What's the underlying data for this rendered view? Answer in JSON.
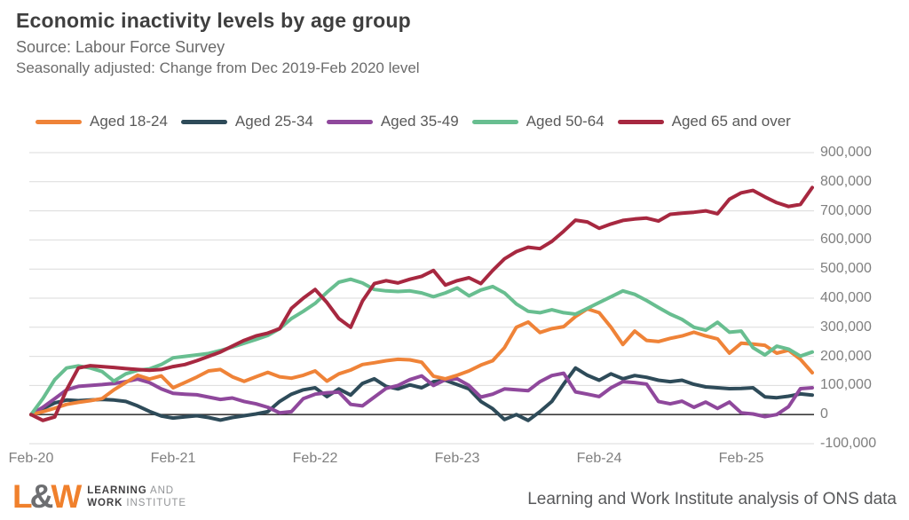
{
  "header": {
    "title": "Economic inactivity levels by age group",
    "subtitle": "Source: Labour Force Survey",
    "note": "Seasonally adjusted: Change from Dec 2019-Feb 2020 level"
  },
  "footer": {
    "logo_mark_l": "L",
    "logo_mark_amp": "&",
    "logo_mark_w": "W",
    "logo_line1_bold": "LEARNING",
    "logo_line1_rest": " AND",
    "logo_line2_bold": "WORK",
    "logo_line2_rest": " INSTITUTE",
    "credit": "Learning and Work Institute analysis of ONS data"
  },
  "colors": {
    "orange": "#EF8338",
    "teal": "#2E4B59",
    "purple": "#8F489C",
    "green": "#68BE90",
    "red": "#A72840",
    "grid": "#DBDBDB",
    "zero_line": "#3B3B3B",
    "logo_orange": "#F0802C",
    "logo_amp_gray": "#6D6E71"
  },
  "chart_data": {
    "type": "line",
    "title": "Economic inactivity levels by age group",
    "subtitle": "Seasonally adjusted: Change from Dec 2019-Feb 2020 level",
    "unit_note": "values are thousands of people (change vs Dec 2019-Feb 2020 level)",
    "grid": true,
    "legend_position": "top",
    "y_axis": {
      "max_thousands": 900,
      "min_thousands": -100,
      "step_thousands": 100,
      "tick_labels": [
        "900,000",
        "800,000",
        "700,000",
        "600,000",
        "500,000",
        "400,000",
        "300,000",
        "200,000",
        "100,000",
        "0",
        "-100,000"
      ]
    },
    "x_axis": {
      "tick_labels": [
        "Feb-20",
        "Feb-21",
        "Feb-22",
        "Feb-23",
        "Feb-24",
        "Feb-25"
      ],
      "tick_month_indices": [
        0,
        12,
        24,
        36,
        48,
        60
      ]
    },
    "months": [
      "Feb-20",
      "Mar-20",
      "Apr-20",
      "May-20",
      "Jun-20",
      "Jul-20",
      "Aug-20",
      "Sep-20",
      "Oct-20",
      "Nov-20",
      "Dec-20",
      "Jan-21",
      "Feb-21",
      "Mar-21",
      "Apr-21",
      "May-21",
      "Jun-21",
      "Jul-21",
      "Aug-21",
      "Sep-21",
      "Oct-21",
      "Nov-21",
      "Dec-21",
      "Jan-22",
      "Feb-22",
      "Mar-22",
      "Apr-22",
      "May-22",
      "Jun-22",
      "Jul-22",
      "Aug-22",
      "Sep-22",
      "Oct-22",
      "Nov-22",
      "Dec-22",
      "Jan-23",
      "Feb-23",
      "Mar-23",
      "Apr-23",
      "May-23",
      "Jun-23",
      "Jul-23",
      "Aug-23",
      "Sep-23",
      "Oct-23",
      "Nov-23",
      "Dec-23",
      "Jan-24",
      "Feb-24",
      "Mar-24",
      "Apr-24",
      "May-24",
      "Jun-24",
      "Jul-24",
      "Aug-24",
      "Sep-24",
      "Oct-24",
      "Nov-24",
      "Dec-24",
      "Jan-25",
      "Feb-25",
      "Mar-25",
      "Apr-25",
      "May-25",
      "Jun-25",
      "Jul-25",
      "Aug-25"
    ],
    "series": [
      {
        "name": "Aged 18-24",
        "color": "#EF8338",
        "z": 3,
        "values_thousands": [
          0,
          10,
          22,
          35,
          42,
          48,
          55,
          85,
          110,
          135,
          122,
          133,
          92,
          110,
          129,
          150,
          155,
          130,
          114,
          130,
          145,
          130,
          125,
          135,
          150,
          115,
          140,
          153,
          172,
          178,
          185,
          190,
          188,
          180,
          132,
          123,
          135,
          150,
          170,
          185,
          230,
          300,
          318,
          282,
          295,
          302,
          337,
          363,
          350,
          300,
          241,
          287,
          255,
          251,
          262,
          270,
          283,
          270,
          260,
          211,
          245,
          242,
          238,
          211,
          221,
          190,
          144
        ]
      },
      {
        "name": "Aged 25-34",
        "color": "#2E4B59",
        "z": 1,
        "values_thousands": [
          0,
          20,
          40,
          50,
          48,
          50,
          52,
          50,
          45,
          30,
          11,
          -5,
          -12,
          -8,
          -4,
          -10,
          -19,
          -10,
          -4,
          2,
          10,
          45,
          70,
          85,
          92,
          62,
          88,
          67,
          107,
          123,
          97,
          88,
          102,
          92,
          113,
          118,
          103,
          88,
          45,
          20,
          -17,
          0,
          -20,
          10,
          45,
          105,
          160,
          135,
          118,
          140,
          123,
          134,
          128,
          118,
          113,
          118,
          104,
          95,
          92,
          89,
          90,
          92,
          61,
          58,
          63,
          71,
          67
        ]
      },
      {
        "name": "Aged 35-49",
        "color": "#8F489C",
        "z": 2,
        "values_thousands": [
          0,
          25,
          55,
          85,
          97,
          100,
          103,
          107,
          113,
          122,
          110,
          88,
          73,
          70,
          68,
          60,
          52,
          57,
          45,
          37,
          25,
          6,
          10,
          55,
          70,
          75,
          77,
          35,
          30,
          60,
          90,
          100,
          120,
          133,
          100,
          120,
          123,
          100,
          60,
          70,
          88,
          85,
          82,
          113,
          134,
          142,
          78,
          70,
          62,
          92,
          113,
          110,
          105,
          45,
          37,
          46,
          25,
          43,
          21,
          43,
          6,
          2,
          -7,
          0,
          27,
          89,
          92
        ]
      },
      {
        "name": "Aged 50-64",
        "color": "#68BE90",
        "z": 4,
        "values_thousands": [
          0,
          55,
          120,
          160,
          167,
          160,
          148,
          115,
          140,
          152,
          157,
          172,
          195,
          200,
          205,
          210,
          220,
          232,
          245,
          258,
          272,
          295,
          330,
          355,
          382,
          420,
          455,
          465,
          452,
          430,
          425,
          423,
          425,
          418,
          405,
          418,
          435,
          408,
          428,
          440,
          418,
          380,
          355,
          350,
          360,
          350,
          345,
          365,
          385,
          405,
          425,
          413,
          392,
          368,
          345,
          327,
          300,
          290,
          317,
          283,
          287,
          230,
          205,
          235,
          225,
          201,
          215
        ]
      },
      {
        "name": "Aged 65 and over",
        "color": "#A72840",
        "z": 5,
        "values_thousands": [
          0,
          -20,
          -8,
          85,
          160,
          168,
          165,
          162,
          158,
          155,
          152,
          155,
          165,
          172,
          185,
          200,
          215,
          235,
          255,
          270,
          280,
          295,
          365,
          400,
          430,
          385,
          330,
          300,
          390,
          450,
          460,
          452,
          465,
          475,
          495,
          445,
          460,
          470,
          450,
          495,
          535,
          560,
          575,
          570,
          595,
          630,
          668,
          662,
          640,
          655,
          667,
          672,
          675,
          665,
          688,
          692,
          695,
          700,
          690,
          740,
          762,
          770,
          748,
          728,
          715,
          722,
          780
        ]
      }
    ]
  }
}
